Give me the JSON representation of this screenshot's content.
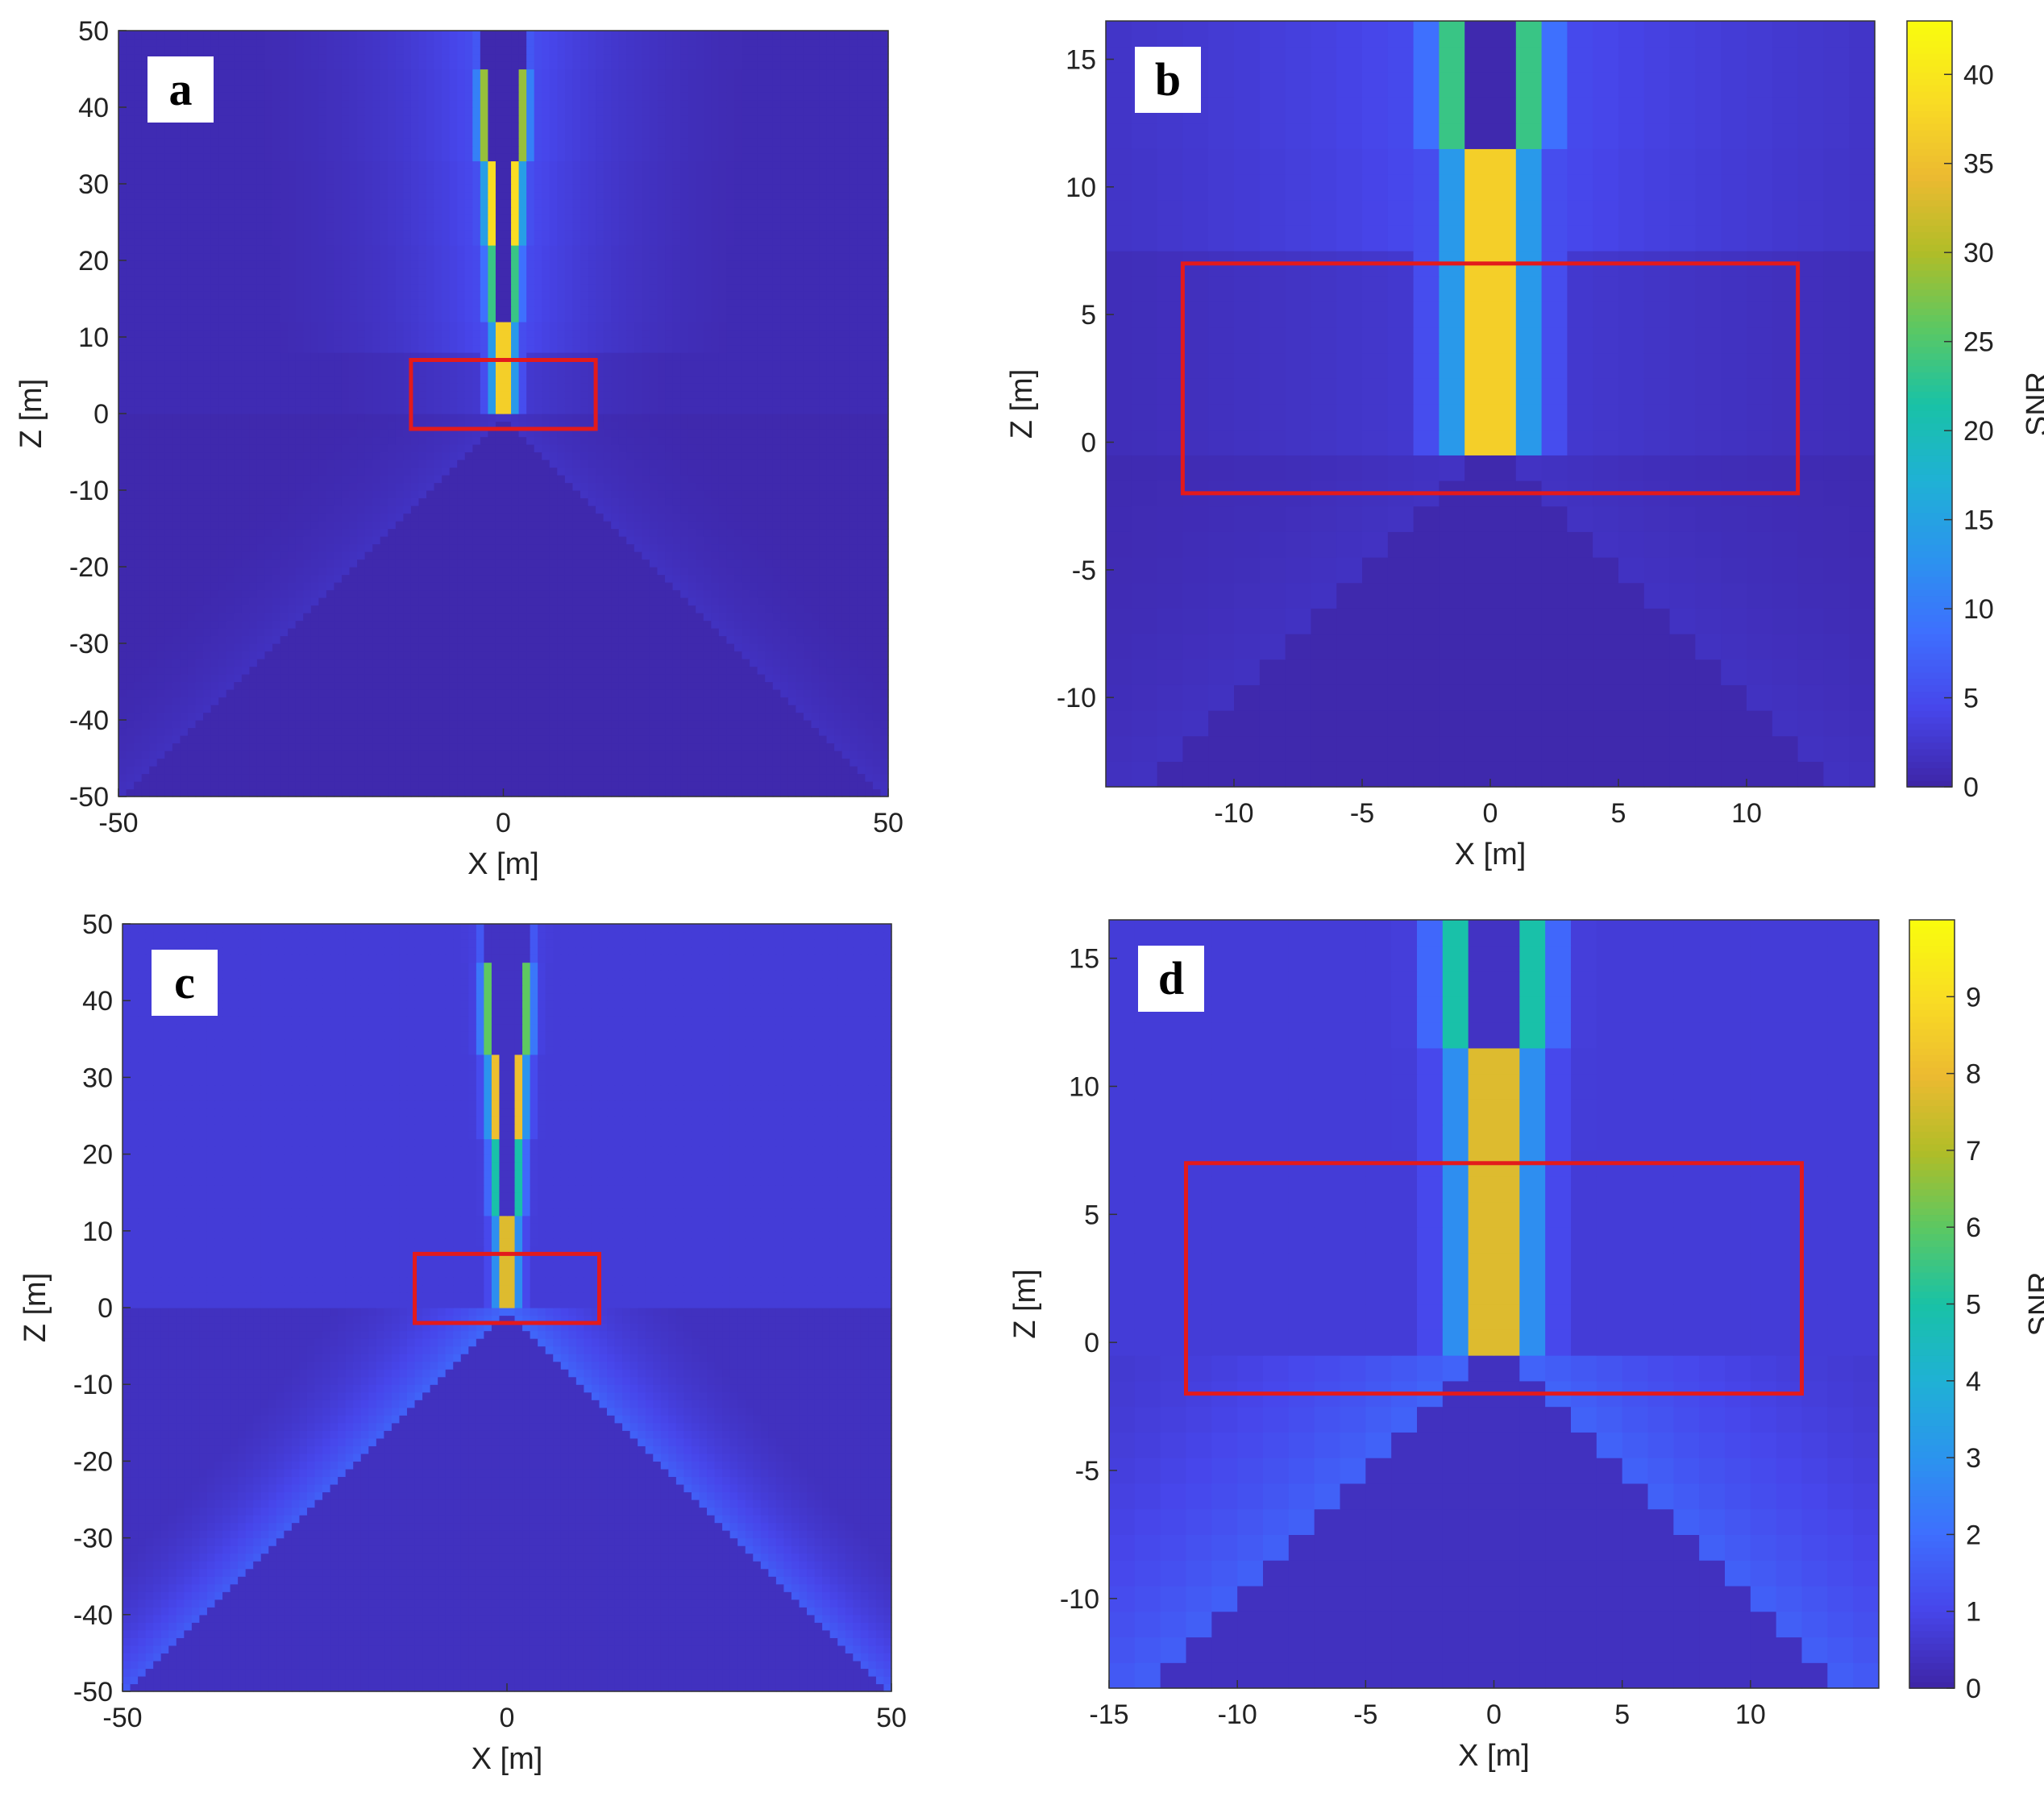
{
  "figure": {
    "colormap": [
      "#3e26a8",
      "#4746eb",
      "#3e6ffe",
      "#2b94ee",
      "#1fb1d5",
      "#19c2a6",
      "#5bc863",
      "#b0bd28",
      "#ecba31",
      "#f9dc24",
      "#f9fb0e"
    ],
    "highlight_color": "#e31a1c"
  },
  "chart_data": [
    {
      "panel": "a",
      "type": "heatmap",
      "title": "",
      "xlabel": "X [m]",
      "ylabel": "Z [m]",
      "xlim": [
        -50,
        50
      ],
      "ylim": [
        -50,
        50
      ],
      "xticks": [
        -50,
        0,
        50
      ],
      "yticks": [
        50,
        40,
        30,
        20,
        10,
        0,
        -10,
        -20,
        -30,
        -40,
        -50
      ],
      "xtick_labels": [
        "-50",
        "0",
        "50"
      ],
      "ytick_labels": [
        "50",
        "40",
        "30",
        "20",
        "10",
        "0",
        "-10",
        "-20",
        "-30",
        "-40",
        "-50"
      ],
      "colorbar": null,
      "highlight_box": {
        "x": [
          -12,
          12
        ],
        "z": [
          -2,
          7
        ]
      },
      "field": {
        "max_snr": 43,
        "cell": 1.0,
        "dead_zone": "below"
      }
    },
    {
      "panel": "b",
      "type": "heatmap",
      "title": "",
      "xlabel": "X [m]",
      "ylabel": "Z [m]",
      "xlim": [
        -15,
        15
      ],
      "ylim": [
        -13.5,
        16.5
      ],
      "xticks": [
        -10,
        -5,
        0,
        5,
        10
      ],
      "yticks": [
        15,
        10,
        5,
        0,
        -5,
        -10
      ],
      "xtick_labels": [
        "-10",
        "-5",
        "0",
        "5",
        "10"
      ],
      "ytick_labels": [
        "15",
        "10",
        "5",
        "0",
        "-5",
        "-10"
      ],
      "colorbar": {
        "label": "SNR",
        "min": 0,
        "max": 43,
        "ticks": [
          40,
          35,
          30,
          25,
          20,
          15,
          10,
          5,
          0
        ],
        "tick_labels": [
          "40",
          "35",
          "30",
          "25",
          "20",
          "15",
          "10",
          "5",
          "0"
        ]
      },
      "highlight_box": {
        "x": [
          -12,
          12
        ],
        "z": [
          -2,
          7
        ]
      },
      "field": {
        "max_snr": 43,
        "cell": 1.0,
        "dead_zone": "below"
      }
    },
    {
      "panel": "c",
      "type": "heatmap",
      "title": "",
      "xlabel": "X [m]",
      "ylabel": "Z [m]",
      "xlim": [
        -50,
        50
      ],
      "ylim": [
        -50,
        50
      ],
      "xticks": [
        -50,
        0,
        50
      ],
      "yticks": [
        50,
        40,
        30,
        20,
        10,
        0,
        -10,
        -20,
        -30,
        -40,
        -50
      ],
      "xtick_labels": [
        "-50",
        "0",
        "50"
      ],
      "ytick_labels": [
        "50",
        "40",
        "30",
        "20",
        "10",
        "0",
        "-10",
        "-20",
        "-30",
        "-40",
        "-50"
      ],
      "colorbar": null,
      "highlight_box": {
        "x": [
          -12,
          12
        ],
        "z": [
          -2,
          7
        ]
      },
      "field": {
        "max_snr": 10,
        "cell": 1.0,
        "dead_zone": "below"
      }
    },
    {
      "panel": "d",
      "type": "heatmap",
      "title": "",
      "xlabel": "X [m]",
      "ylabel": "Z [m]",
      "xlim": [
        -15,
        15
      ],
      "ylim": [
        -13.5,
        16.5
      ],
      "xticks": [
        -15,
        -10,
        -5,
        0,
        5,
        10
      ],
      "yticks": [
        15,
        10,
        5,
        0,
        -5,
        -10
      ],
      "xtick_labels": [
        "-15",
        "-10",
        "-5",
        "0",
        "5",
        "10"
      ],
      "ytick_labels": [
        "15",
        "10",
        "5",
        "0",
        "-5",
        "-10"
      ],
      "colorbar": {
        "label": "SNR",
        "min": 0,
        "max": 10,
        "ticks": [
          9,
          8,
          7,
          6,
          5,
          4,
          3,
          2,
          1,
          0
        ],
        "tick_labels": [
          "9",
          "8",
          "7",
          "6",
          "5",
          "4",
          "3",
          "2",
          "1",
          "0"
        ]
      },
      "highlight_box": {
        "x": [
          -12,
          12
        ],
        "z": [
          -2,
          7
        ]
      },
      "field": {
        "max_snr": 10,
        "cell": 1.0,
        "dead_zone": "below"
      }
    }
  ]
}
